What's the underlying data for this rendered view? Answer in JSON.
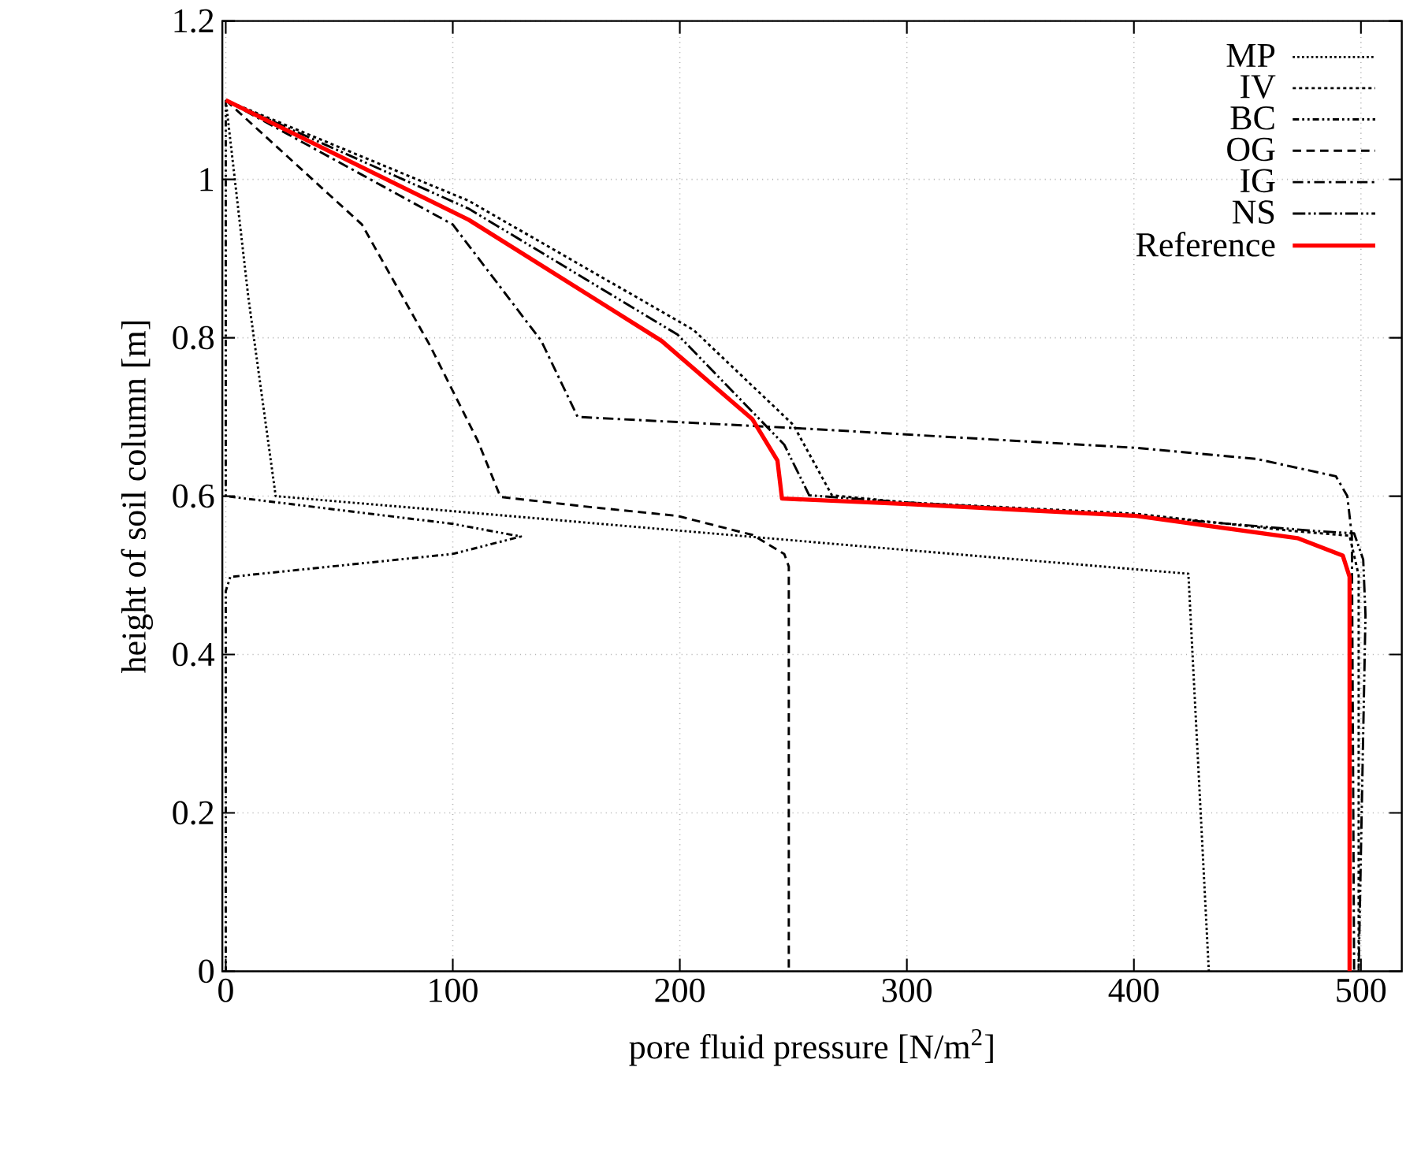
{
  "chart_data": {
    "type": "line",
    "xlabel": "pore fluid pressure [N/m$^{2}$]",
    "ylabel": "height of soil column [m]",
    "xlim": [
      -1.5,
      518
    ],
    "ylim": [
      0,
      1.2
    ],
    "xticks": [
      0,
      100,
      200,
      300,
      400,
      500
    ],
    "yticks": [
      0,
      0.2,
      0.4,
      0.6,
      0.8,
      1,
      1.2
    ],
    "grid": true,
    "legend": "top right",
    "marker": "none",
    "series": [
      {
        "name": "MP",
        "color": "#000000",
        "line_style": "dotted",
        "x": [
          0,
          10,
          22,
          100,
          283,
          424,
          433
        ],
        "values": [
          1.1,
          0.85,
          0.6,
          0.581,
          0.536,
          0.502,
          0
        ]
      },
      {
        "name": "IV",
        "color": "#000000",
        "line_style": "loosely dotted",
        "x": [
          0,
          107,
          206,
          250,
          267,
          300,
          400,
          470,
          495,
          499,
          499
        ],
        "values": [
          1.1,
          0.973,
          0.81,
          0.69,
          0.601,
          0.592,
          0.578,
          0.556,
          0.55,
          0.5,
          0
        ]
      },
      {
        "name": "BC",
        "color": "#000000",
        "line_style": "dashdotdot",
        "x": [
          0,
          0,
          100,
          130,
          100,
          2,
          0,
          0
        ],
        "values": [
          1.1,
          0.6,
          0.565,
          0.549,
          0.527,
          0.498,
          0.48,
          0
        ]
      },
      {
        "name": "OG",
        "color": "#000000",
        "line_style": "dashed",
        "x": [
          0,
          60,
          90,
          111,
          121,
          158,
          199,
          232,
          246,
          248,
          248
        ],
        "values": [
          1.1,
          0.943,
          0.79,
          0.67,
          0.599,
          0.587,
          0.575,
          0.551,
          0.527,
          0.511,
          0
        ]
      },
      {
        "name": "IG",
        "color": "#000000",
        "line_style": "dashdot",
        "x": [
          0,
          100,
          139,
          155,
          257,
          401,
          454,
          489,
          494,
          496,
          497
        ],
        "values": [
          1.1,
          0.943,
          0.796,
          0.7,
          0.685,
          0.661,
          0.647,
          0.625,
          0.6,
          0.55,
          0
        ]
      },
      {
        "name": "NS",
        "color": "#000000",
        "line_style": "longdashdotdot",
        "x": [
          0,
          107,
          199,
          246,
          257,
          300,
          400,
          480,
          497,
          501,
          502,
          499
        ],
        "values": [
          1.1,
          0.963,
          0.804,
          0.665,
          0.601,
          0.592,
          0.575,
          0.556,
          0.553,
          0.52,
          0.45,
          0
        ]
      },
      {
        "name": "Reference",
        "color": "#ff0000",
        "line_style": "solid",
        "x": [
          0,
          107,
          192,
          232,
          243,
          245,
          300,
          401,
          472,
          492,
          495,
          495
        ],
        "values": [
          1.1,
          0.949,
          0.796,
          0.697,
          0.645,
          0.597,
          0.59,
          0.575,
          0.547,
          0.525,
          0.498,
          0
        ]
      }
    ]
  }
}
